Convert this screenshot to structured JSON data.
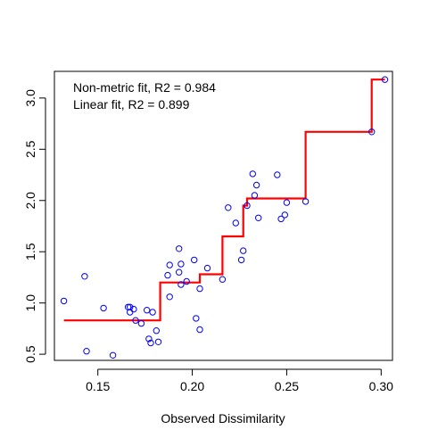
{
  "chart_data": {
    "type": "scatter",
    "title": "",
    "xlabel": "Observed Dissimilarity",
    "ylabel": "",
    "xlim": [
      0.127,
      0.306
    ],
    "ylim": [
      0.44,
      3.26
    ],
    "x_ticks": [
      0.15,
      0.2,
      0.25,
      0.3
    ],
    "x_tick_labels": [
      "0.15",
      "0.20",
      "0.25",
      "0.30"
    ],
    "y_ticks": [
      0.5,
      1.0,
      1.5,
      2.0,
      2.5,
      3.0
    ],
    "y_tick_labels": [
      "0.5",
      "1.0",
      "1.5",
      "2.0",
      "2.5",
      "3.0"
    ],
    "grid": false,
    "annotations": [
      "Non-metric fit, R2 = 0.984",
      "Linear fit, R2 = 0.899"
    ],
    "colors": {
      "points": "#0000ff",
      "fit": "#ff0000",
      "axis": "#000000"
    },
    "points": {
      "x": [
        0.132,
        0.143,
        0.144,
        0.153,
        0.158,
        0.166,
        0.167,
        0.167,
        0.169,
        0.17,
        0.173,
        0.176,
        0.177,
        0.178,
        0.179,
        0.181,
        0.182,
        0.187,
        0.188,
        0.188,
        0.193,
        0.193,
        0.194,
        0.194,
        0.197,
        0.201,
        0.202,
        0.204,
        0.204,
        0.208,
        0.216,
        0.219,
        0.223,
        0.226,
        0.227,
        0.229,
        0.232,
        0.233,
        0.234,
        0.235,
        0.245,
        0.247,
        0.249,
        0.25,
        0.26,
        0.295,
        0.302
      ],
      "y": [
        1.02,
        1.26,
        0.53,
        0.95,
        0.49,
        0.96,
        0.96,
        0.91,
        0.94,
        0.83,
        0.8,
        0.93,
        0.65,
        0.61,
        0.91,
        0.73,
        0.62,
        1.27,
        1.37,
        1.06,
        1.53,
        1.3,
        1.38,
        1.18,
        1.21,
        1.42,
        0.85,
        0.74,
        1.14,
        1.34,
        1.23,
        1.93,
        1.78,
        1.42,
        1.51,
        1.95,
        2.26,
        2.05,
        2.15,
        1.83,
        2.25,
        1.82,
        1.86,
        1.98,
        1.99,
        2.67,
        3.18
      ]
    },
    "fit_line": {
      "x": [
        0.132,
        0.183,
        0.183,
        0.204,
        0.204,
        0.216,
        0.216,
        0.227,
        0.227,
        0.229,
        0.229,
        0.26,
        0.26,
        0.295,
        0.295,
        0.302
      ],
      "y": [
        0.83,
        0.83,
        1.2,
        1.2,
        1.28,
        1.28,
        1.65,
        1.65,
        1.95,
        1.95,
        2.02,
        2.02,
        2.67,
        2.67,
        3.18,
        3.18
      ]
    }
  }
}
